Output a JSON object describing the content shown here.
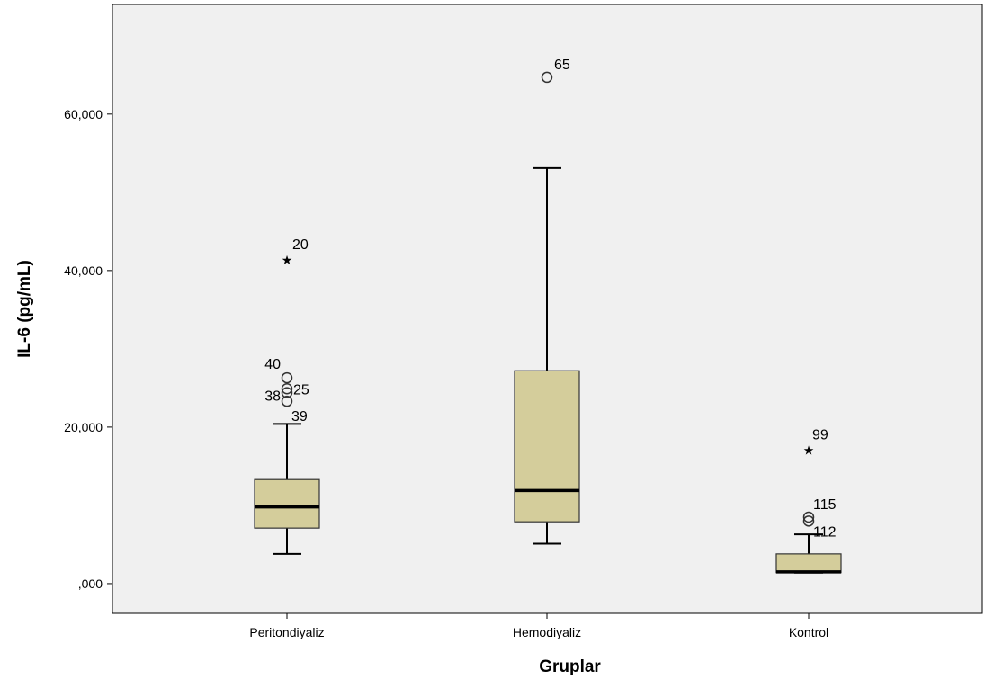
{
  "chart_data": {
    "type": "boxplot",
    "xlabel": "Gruplar",
    "ylabel": "IL-6 (pg/mL)",
    "ylim": [
      -3.8,
      74.0
    ],
    "yticks": [
      {
        "value": 0,
        "label": ",000"
      },
      {
        "value": 20,
        "label": "20,000"
      },
      {
        "value": 40,
        "label": "40,000"
      },
      {
        "value": 60,
        "label": "60,000"
      }
    ],
    "grid": false,
    "categories": [
      "Peritondiyaliz",
      "Hemodiyaliz",
      "Kontrol"
    ],
    "boxes": [
      {
        "category": "Peritondiyaliz",
        "whisker_low": 3.8,
        "q1": 7.1,
        "median": 9.8,
        "q3": 13.3,
        "whisker_high": 20.4,
        "outliers": [
          {
            "id": "20",
            "value": 41.7,
            "kind": "extreme"
          },
          {
            "id": "40",
            "value": 26.3,
            "kind": "outlier"
          },
          {
            "id": "25",
            "value": 24.9,
            "kind": "outlier"
          },
          {
            "id": "38",
            "value": 24.4,
            "kind": "outlier"
          },
          {
            "id": "39",
            "value": 23.3,
            "kind": "outlier"
          }
        ]
      },
      {
        "category": "Hemodiyaliz",
        "whisker_low": 5.1,
        "q1": 7.9,
        "median": 11.9,
        "q3": 27.2,
        "whisker_high": 53.1,
        "outliers": [
          {
            "id": "65",
            "value": 64.7,
            "kind": "outlier"
          }
        ]
      },
      {
        "category": "Kontrol",
        "whisker_low": 1.4,
        "q1": 1.4,
        "median": 1.5,
        "q3": 3.8,
        "whisker_high": 6.3,
        "outliers": [
          {
            "id": "99",
            "value": 17.4,
            "kind": "extreme"
          },
          {
            "id": "115",
            "value": 8.5,
            "kind": "outlier"
          },
          {
            "id": "112",
            "value": 8.0,
            "kind": "outlier"
          }
        ]
      }
    ],
    "colors": {
      "plot_background": "#f0f0f0",
      "box_fill": "#d4cd9b",
      "stroke": "#000000"
    }
  }
}
